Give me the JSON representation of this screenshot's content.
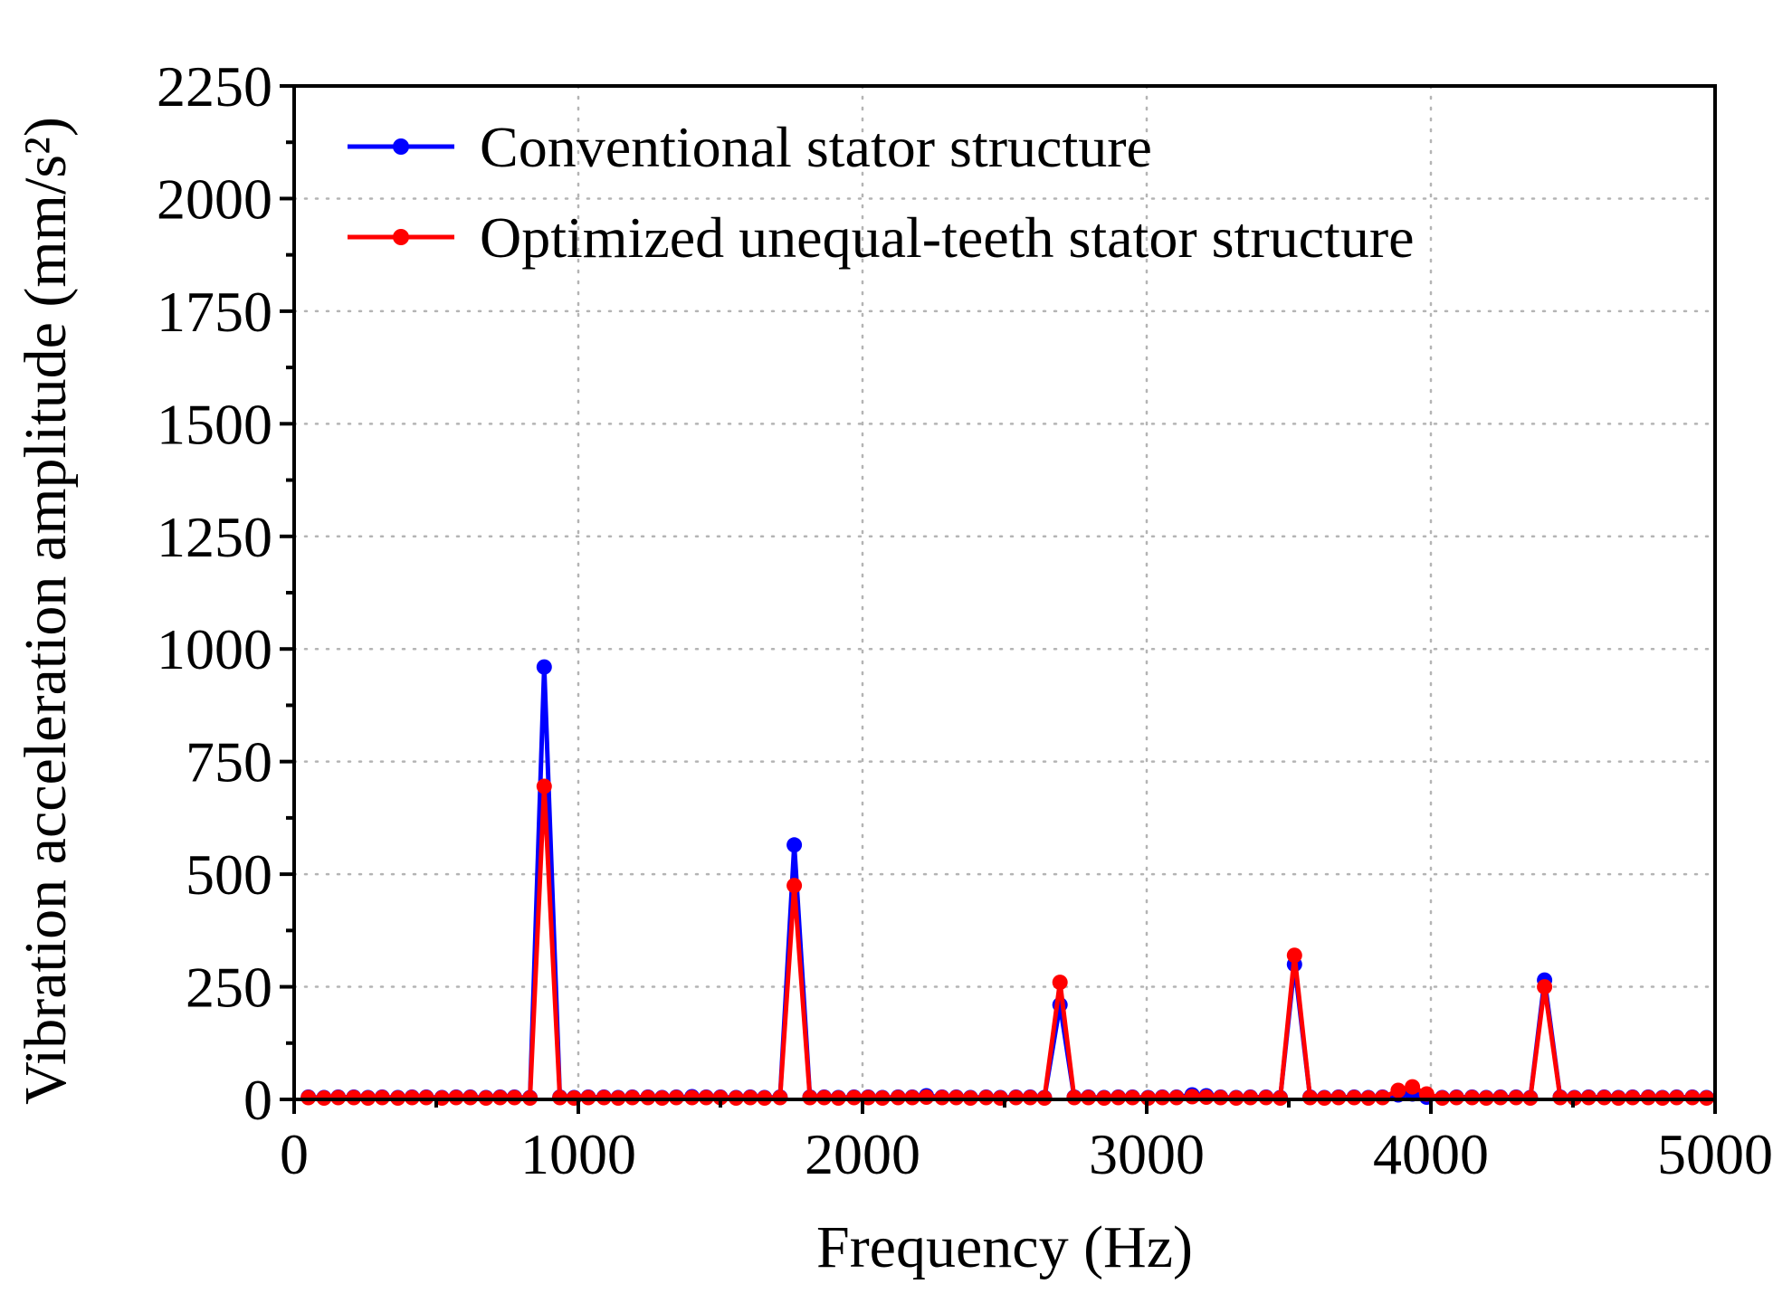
{
  "chart_data": {
    "type": "line",
    "title": "",
    "xlabel": "Frequency (Hz)",
    "ylabel": "Vibration acceleration amplitude (mm/s²)",
    "xlim": [
      0,
      5000
    ],
    "ylim": [
      0,
      2250
    ],
    "xticks": [
      0,
      1000,
      2000,
      3000,
      4000,
      5000
    ],
    "yticks": [
      0,
      250,
      500,
      750,
      1000,
      1250,
      1500,
      1750,
      2000,
      2250
    ],
    "grid": true,
    "legend_position": "top-left",
    "series": [
      {
        "name": "Conventional stator structure",
        "color": "#0000ff",
        "x": [
          50,
          105,
          155,
          210,
          260,
          310,
          365,
          415,
          465,
          520,
          570,
          620,
          675,
          725,
          775,
          830,
          880,
          935,
          985,
          1035,
          1090,
          1140,
          1190,
          1245,
          1295,
          1345,
          1400,
          1450,
          1500,
          1555,
          1605,
          1655,
          1710,
          1760,
          1815,
          1865,
          1915,
          1970,
          2020,
          2070,
          2125,
          2175,
          2225,
          2280,
          2330,
          2380,
          2435,
          2485,
          2540,
          2590,
          2640,
          2695,
          2745,
          2795,
          2850,
          2900,
          2950,
          3005,
          3055,
          3105,
          3160,
          3210,
          3260,
          3315,
          3365,
          3420,
          3470,
          3520,
          3575,
          3625,
          3675,
          3730,
          3780,
          3830,
          3885,
          3935,
          3985,
          4040,
          4090,
          4145,
          4195,
          4245,
          4300,
          4350,
          4400,
          4455,
          4505,
          4555,
          4610,
          4660,
          4710,
          4765,
          4815,
          4865,
          4920,
          4970
        ],
        "values": [
          5,
          4,
          5,
          5,
          4,
          5,
          4,
          5,
          5,
          4,
          5,
          5,
          4,
          5,
          5,
          4,
          960,
          5,
          4,
          5,
          5,
          4,
          5,
          5,
          4,
          5,
          6,
          5,
          5,
          4,
          5,
          4,
          5,
          565,
          5,
          5,
          4,
          5,
          5,
          4,
          5,
          5,
          8,
          5,
          5,
          4,
          5,
          4,
          5,
          5,
          4,
          210,
          5,
          5,
          4,
          5,
          5,
          4,
          5,
          5,
          10,
          8,
          5,
          4,
          5,
          5,
          4,
          300,
          5,
          4,
          5,
          5,
          4,
          5,
          10,
          12,
          5,
          4,
          5,
          5,
          4,
          5,
          5,
          4,
          265,
          5,
          4,
          5,
          5,
          4,
          5,
          5,
          4,
          5,
          5,
          4
        ]
      },
      {
        "name": "Optimized unequal-teeth stator structure",
        "color": "#ff0000",
        "x": [
          50,
          105,
          155,
          210,
          260,
          310,
          365,
          415,
          465,
          520,
          570,
          620,
          675,
          725,
          775,
          830,
          880,
          935,
          985,
          1035,
          1090,
          1140,
          1190,
          1245,
          1295,
          1345,
          1400,
          1450,
          1500,
          1555,
          1605,
          1655,
          1710,
          1760,
          1815,
          1865,
          1915,
          1970,
          2020,
          2070,
          2125,
          2175,
          2225,
          2280,
          2330,
          2380,
          2435,
          2485,
          2540,
          2590,
          2640,
          2695,
          2745,
          2795,
          2850,
          2900,
          2950,
          3005,
          3055,
          3105,
          3160,
          3210,
          3260,
          3315,
          3365,
          3420,
          3470,
          3520,
          3575,
          3625,
          3675,
          3730,
          3780,
          3830,
          3885,
          3935,
          3985,
          4040,
          4090,
          4145,
          4195,
          4245,
          4300,
          4350,
          4400,
          4455,
          4505,
          4555,
          4610,
          4660,
          4710,
          4765,
          4815,
          4865,
          4920,
          4970
        ],
        "values": [
          4,
          3,
          4,
          4,
          3,
          4,
          3,
          4,
          4,
          3,
          4,
          4,
          3,
          4,
          4,
          3,
          695,
          4,
          3,
          4,
          4,
          3,
          4,
          4,
          3,
          4,
          4,
          4,
          4,
          3,
          4,
          3,
          4,
          475,
          4,
          4,
          3,
          4,
          4,
          3,
          4,
          4,
          5,
          4,
          4,
          3,
          4,
          3,
          4,
          4,
          3,
          260,
          4,
          4,
          3,
          4,
          4,
          3,
          4,
          4,
          6,
          5,
          4,
          3,
          4,
          4,
          3,
          320,
          4,
          3,
          4,
          4,
          3,
          4,
          20,
          28,
          12,
          3,
          4,
          4,
          3,
          4,
          4,
          3,
          250,
          4,
          3,
          4,
          4,
          3,
          4,
          4,
          3,
          4,
          4,
          3
        ]
      }
    ]
  }
}
